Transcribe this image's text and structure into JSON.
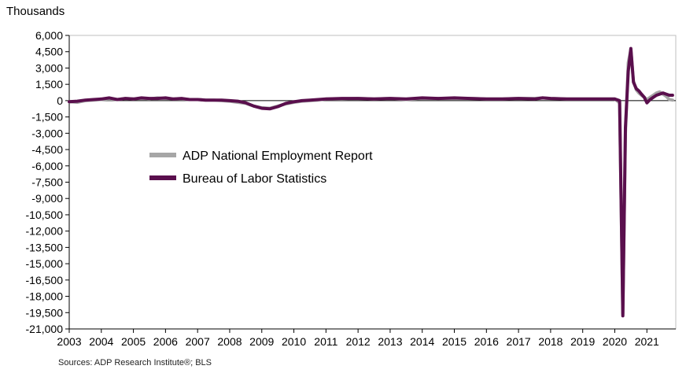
{
  "page": {
    "y_unit_label": "Thousands",
    "source": "Sources: ADP Research Institute®; BLS"
  },
  "chart_data": {
    "type": "line",
    "title": "",
    "xlabel": "",
    "ylabel": "Thousands",
    "ylim": [
      -21000,
      6000
    ],
    "yticks": [
      6000,
      4500,
      3000,
      1500,
      0,
      -1500,
      -3000,
      -4500,
      -6000,
      -7500,
      -9000,
      -10500,
      -12000,
      -13500,
      -15000,
      -16500,
      -18000,
      -19500,
      -21000
    ],
    "ytick_labels": [
      "6,000",
      "4,500",
      "3,000",
      "1,500",
      "0",
      "-1,500",
      "-3,000",
      "-4,500",
      "-6,000",
      "-7,500",
      "-9,000",
      "-10,500",
      "-12,000",
      "-13,500",
      "-15,000",
      "-16,500",
      "-18,000",
      "-19,500",
      "-21,000"
    ],
    "xlim": [
      2003,
      2021.9
    ],
    "xticks": [
      2003,
      2004,
      2005,
      2006,
      2007,
      2008,
      2009,
      2010,
      2011,
      2012,
      2013,
      2014,
      2015,
      2016,
      2017,
      2018,
      2019,
      2020,
      2021
    ],
    "xtick_labels": [
      "2003",
      "2004",
      "2005",
      "2006",
      "2007",
      "2008",
      "2009",
      "2010",
      "2011",
      "2012",
      "2013",
      "2014",
      "2015",
      "2016",
      "2017",
      "2018",
      "2019",
      "2020",
      "2021"
    ],
    "grid": false,
    "legend": "center-left",
    "colors": {
      "adp": "#a6a6a6",
      "bls": "#5a0f4d",
      "axis": "#000000",
      "frame": "#bfbfbf"
    },
    "series": [
      {
        "name": "ADP National Employment Report",
        "key": "adp",
        "x": [
          2003.0,
          2003.25,
          2003.5,
          2003.75,
          2004.0,
          2004.25,
          2004.5,
          2004.75,
          2005.0,
          2005.25,
          2005.5,
          2005.75,
          2006.0,
          2006.25,
          2006.5,
          2006.75,
          2007.0,
          2007.25,
          2007.5,
          2007.75,
          2008.0,
          2008.25,
          2008.5,
          2008.75,
          2009.0,
          2009.25,
          2009.5,
          2009.75,
          2010.0,
          2010.25,
          2010.5,
          2010.75,
          2011.0,
          2011.5,
          2012.0,
          2012.5,
          2013.0,
          2013.5,
          2014.0,
          2014.5,
          2015.0,
          2015.5,
          2016.0,
          2016.5,
          2017.0,
          2017.5,
          2017.75,
          2018.0,
          2018.5,
          2019.0,
          2019.5,
          2020.0,
          2020.15,
          2020.25,
          2020.33,
          2020.42,
          2020.5,
          2020.58,
          2020.67,
          2020.75,
          2020.83,
          2020.92,
          2021.0,
          2021.1,
          2021.2,
          2021.3,
          2021.4,
          2021.5,
          2021.6,
          2021.7,
          2021.8
        ],
        "y": [
          -100,
          -150,
          0,
          50,
          100,
          150,
          100,
          200,
          150,
          200,
          150,
          250,
          200,
          150,
          150,
          100,
          100,
          50,
          50,
          0,
          -50,
          -150,
          -250,
          -500,
          -650,
          -700,
          -500,
          -300,
          -150,
          -50,
          0,
          50,
          150,
          150,
          200,
          150,
          200,
          100,
          200,
          200,
          200,
          200,
          150,
          150,
          200,
          200,
          250,
          200,
          150,
          150,
          150,
          150,
          -200,
          -19600,
          -3000,
          3500,
          4700,
          1800,
          1000,
          700,
          500,
          300,
          100,
          300,
          500,
          700,
          800,
          600,
          400,
          100,
          50
        ]
      },
      {
        "name": "Bureau of Labor Statistics",
        "key": "bls",
        "x": [
          2003.0,
          2003.25,
          2003.5,
          2003.75,
          2004.0,
          2004.25,
          2004.5,
          2004.75,
          2005.0,
          2005.25,
          2005.5,
          2005.75,
          2006.0,
          2006.25,
          2006.5,
          2006.75,
          2007.0,
          2007.25,
          2007.5,
          2007.75,
          2008.0,
          2008.25,
          2008.5,
          2008.75,
          2009.0,
          2009.25,
          2009.5,
          2009.75,
          2010.0,
          2010.25,
          2010.5,
          2010.75,
          2011.0,
          2011.5,
          2012.0,
          2012.5,
          2013.0,
          2013.5,
          2014.0,
          2014.5,
          2015.0,
          2015.5,
          2016.0,
          2016.5,
          2017.0,
          2017.5,
          2017.75,
          2018.0,
          2018.5,
          2019.0,
          2019.5,
          2020.0,
          2020.15,
          2020.25,
          2020.33,
          2020.42,
          2020.5,
          2020.58,
          2020.67,
          2020.75,
          2020.83,
          2020.92,
          2021.0,
          2021.1,
          2021.2,
          2021.3,
          2021.4,
          2021.5,
          2021.6,
          2021.7,
          2021.8
        ],
        "y": [
          -100,
          -50,
          50,
          100,
          150,
          250,
          100,
          200,
          150,
          250,
          200,
          200,
          250,
          150,
          200,
          100,
          100,
          50,
          50,
          50,
          0,
          -50,
          -200,
          -500,
          -700,
          -750,
          -550,
          -250,
          -100,
          0,
          50,
          100,
          150,
          200,
          200,
          150,
          200,
          150,
          250,
          200,
          250,
          200,
          150,
          150,
          200,
          150,
          250,
          200,
          150,
          150,
          150,
          150,
          0,
          -19800,
          -2500,
          2700,
          4800,
          1700,
          1100,
          900,
          600,
          300,
          -200,
          100,
          300,
          500,
          600,
          700,
          600,
          500,
          500
        ]
      }
    ]
  }
}
